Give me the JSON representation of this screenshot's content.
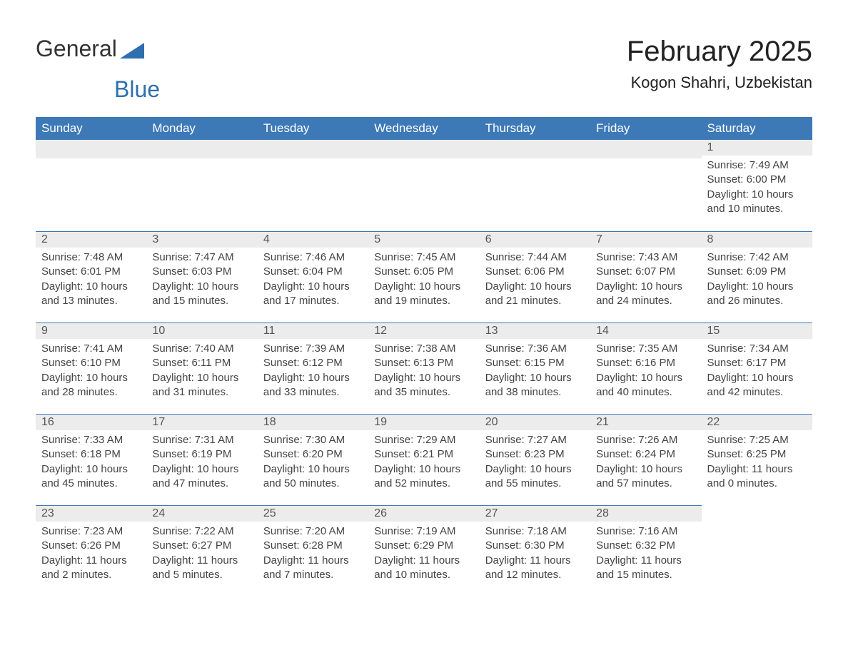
{
  "brand": {
    "part1": "General",
    "part2": "Blue"
  },
  "title": {
    "month": "February 2025",
    "location": "Kogon Shahri, Uzbekistan"
  },
  "colors": {
    "header_bg": "#3d79b7",
    "header_text": "#ffffff",
    "date_bg": "#ececec",
    "border": "#3d79b7",
    "brand_blue": "#2f6fad"
  },
  "weekdays": [
    "Sunday",
    "Monday",
    "Tuesday",
    "Wednesday",
    "Thursday",
    "Friday",
    "Saturday"
  ],
  "weeks": [
    {
      "firstRow": true,
      "days": [
        null,
        null,
        null,
        null,
        null,
        null,
        {
          "day": "1",
          "sunrise": "Sunrise: 7:49 AM",
          "sunset": "Sunset: 6:00 PM",
          "daylight": "Daylight: 10 hours and 10 minutes."
        }
      ]
    },
    {
      "days": [
        {
          "day": "2",
          "sunrise": "Sunrise: 7:48 AM",
          "sunset": "Sunset: 6:01 PM",
          "daylight": "Daylight: 10 hours and 13 minutes."
        },
        {
          "day": "3",
          "sunrise": "Sunrise: 7:47 AM",
          "sunset": "Sunset: 6:03 PM",
          "daylight": "Daylight: 10 hours and 15 minutes."
        },
        {
          "day": "4",
          "sunrise": "Sunrise: 7:46 AM",
          "sunset": "Sunset: 6:04 PM",
          "daylight": "Daylight: 10 hours and 17 minutes."
        },
        {
          "day": "5",
          "sunrise": "Sunrise: 7:45 AM",
          "sunset": "Sunset: 6:05 PM",
          "daylight": "Daylight: 10 hours and 19 minutes."
        },
        {
          "day": "6",
          "sunrise": "Sunrise: 7:44 AM",
          "sunset": "Sunset: 6:06 PM",
          "daylight": "Daylight: 10 hours and 21 minutes."
        },
        {
          "day": "7",
          "sunrise": "Sunrise: 7:43 AM",
          "sunset": "Sunset: 6:07 PM",
          "daylight": "Daylight: 10 hours and 24 minutes."
        },
        {
          "day": "8",
          "sunrise": "Sunrise: 7:42 AM",
          "sunset": "Sunset: 6:09 PM",
          "daylight": "Daylight: 10 hours and 26 minutes."
        }
      ]
    },
    {
      "days": [
        {
          "day": "9",
          "sunrise": "Sunrise: 7:41 AM",
          "sunset": "Sunset: 6:10 PM",
          "daylight": "Daylight: 10 hours and 28 minutes."
        },
        {
          "day": "10",
          "sunrise": "Sunrise: 7:40 AM",
          "sunset": "Sunset: 6:11 PM",
          "daylight": "Daylight: 10 hours and 31 minutes."
        },
        {
          "day": "11",
          "sunrise": "Sunrise: 7:39 AM",
          "sunset": "Sunset: 6:12 PM",
          "daylight": "Daylight: 10 hours and 33 minutes."
        },
        {
          "day": "12",
          "sunrise": "Sunrise: 7:38 AM",
          "sunset": "Sunset: 6:13 PM",
          "daylight": "Daylight: 10 hours and 35 minutes."
        },
        {
          "day": "13",
          "sunrise": "Sunrise: 7:36 AM",
          "sunset": "Sunset: 6:15 PM",
          "daylight": "Daylight: 10 hours and 38 minutes."
        },
        {
          "day": "14",
          "sunrise": "Sunrise: 7:35 AM",
          "sunset": "Sunset: 6:16 PM",
          "daylight": "Daylight: 10 hours and 40 minutes."
        },
        {
          "day": "15",
          "sunrise": "Sunrise: 7:34 AM",
          "sunset": "Sunset: 6:17 PM",
          "daylight": "Daylight: 10 hours and 42 minutes."
        }
      ]
    },
    {
      "days": [
        {
          "day": "16",
          "sunrise": "Sunrise: 7:33 AM",
          "sunset": "Sunset: 6:18 PM",
          "daylight": "Daylight: 10 hours and 45 minutes."
        },
        {
          "day": "17",
          "sunrise": "Sunrise: 7:31 AM",
          "sunset": "Sunset: 6:19 PM",
          "daylight": "Daylight: 10 hours and 47 minutes."
        },
        {
          "day": "18",
          "sunrise": "Sunrise: 7:30 AM",
          "sunset": "Sunset: 6:20 PM",
          "daylight": "Daylight: 10 hours and 50 minutes."
        },
        {
          "day": "19",
          "sunrise": "Sunrise: 7:29 AM",
          "sunset": "Sunset: 6:21 PM",
          "daylight": "Daylight: 10 hours and 52 minutes."
        },
        {
          "day": "20",
          "sunrise": "Sunrise: 7:27 AM",
          "sunset": "Sunset: 6:23 PM",
          "daylight": "Daylight: 10 hours and 55 minutes."
        },
        {
          "day": "21",
          "sunrise": "Sunrise: 7:26 AM",
          "sunset": "Sunset: 6:24 PM",
          "daylight": "Daylight: 10 hours and 57 minutes."
        },
        {
          "day": "22",
          "sunrise": "Sunrise: 7:25 AM",
          "sunset": "Sunset: 6:25 PM",
          "daylight": "Daylight: 11 hours and 0 minutes."
        }
      ]
    },
    {
      "days": [
        {
          "day": "23",
          "sunrise": "Sunrise: 7:23 AM",
          "sunset": "Sunset: 6:26 PM",
          "daylight": "Daylight: 11 hours and 2 minutes."
        },
        {
          "day": "24",
          "sunrise": "Sunrise: 7:22 AM",
          "sunset": "Sunset: 6:27 PM",
          "daylight": "Daylight: 11 hours and 5 minutes."
        },
        {
          "day": "25",
          "sunrise": "Sunrise: 7:20 AM",
          "sunset": "Sunset: 6:28 PM",
          "daylight": "Daylight: 11 hours and 7 minutes."
        },
        {
          "day": "26",
          "sunrise": "Sunrise: 7:19 AM",
          "sunset": "Sunset: 6:29 PM",
          "daylight": "Daylight: 11 hours and 10 minutes."
        },
        {
          "day": "27",
          "sunrise": "Sunrise: 7:18 AM",
          "sunset": "Sunset: 6:30 PM",
          "daylight": "Daylight: 11 hours and 12 minutes."
        },
        {
          "day": "28",
          "sunrise": "Sunrise: 7:16 AM",
          "sunset": "Sunset: 6:32 PM",
          "daylight": "Daylight: 11 hours and 15 minutes."
        },
        null
      ]
    }
  ]
}
